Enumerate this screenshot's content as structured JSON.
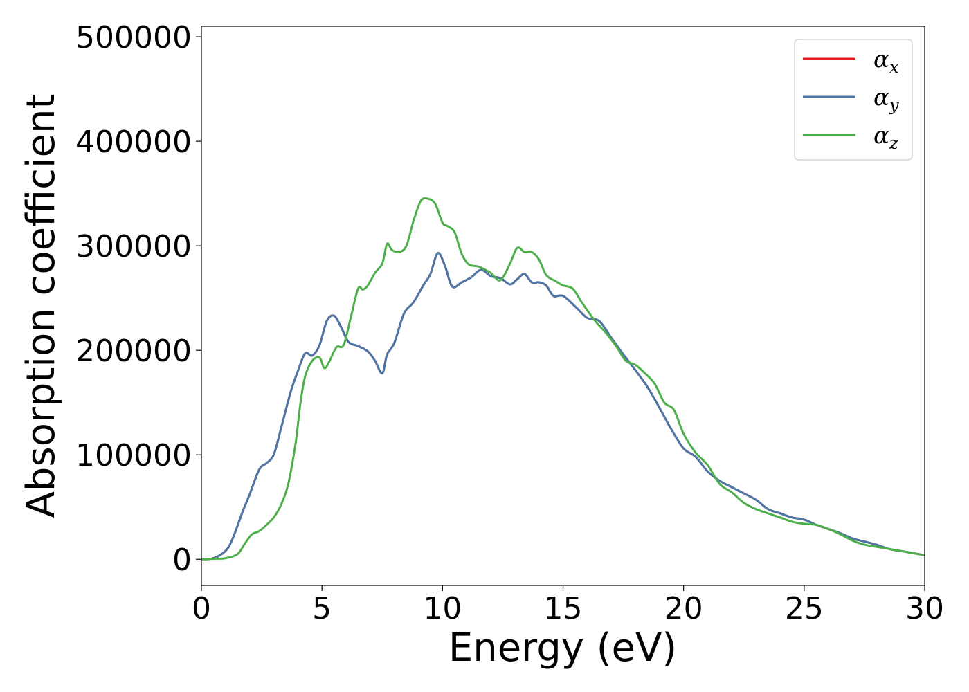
{
  "chart_data": {
    "type": "line",
    "xlabel": "Energy (eV)",
    "ylabel": "Absorption coefficient",
    "xlim": [
      0,
      30
    ],
    "ylim": [
      -25000,
      510000
    ],
    "xticks": [
      0,
      5,
      10,
      15,
      20,
      25,
      30
    ],
    "xtick_labels": [
      "0",
      "5",
      "10",
      "15",
      "20",
      "25",
      "30"
    ],
    "yticks": [
      0,
      100000,
      200000,
      300000,
      400000,
      500000
    ],
    "ytick_labels": [
      "0",
      "100000",
      "200000",
      "300000",
      "400000",
      "500000"
    ],
    "grid": false,
    "legend_position": "top-right",
    "series": [
      {
        "name": "α_x",
        "legend_symbol": "α",
        "legend_subscript": "x",
        "color": "#e41a1c",
        "x": [
          0,
          0.5,
          1.0,
          1.3,
          1.7,
          2.0,
          2.4,
          2.7,
          3.0,
          3.3,
          3.7,
          4.0,
          4.3,
          4.6,
          4.9,
          5.2,
          5.5,
          5.8,
          6.1,
          6.5,
          6.9,
          7.2,
          7.5,
          7.7,
          8.0,
          8.4,
          8.8,
          9.2,
          9.5,
          9.8,
          10.1,
          10.4,
          10.8,
          11.2,
          11.6,
          12.0,
          12.4,
          12.8,
          13.1,
          13.4,
          13.7,
          14.0,
          14.3,
          14.6,
          15.0,
          15.5,
          16.0,
          16.5,
          17.0,
          17.5,
          18.0,
          18.5,
          19.0,
          19.5,
          20.0,
          20.5,
          21.0,
          21.5,
          22.0,
          22.5,
          23.0,
          23.5,
          24.0,
          24.5,
          25.0,
          25.5,
          26.0,
          26.5,
          27.0,
          27.5,
          28.0,
          28.5,
          29.0,
          29.5,
          30.0
        ],
        "y": [
          0,
          1000,
          8000,
          20000,
          45000,
          62000,
          86000,
          92000,
          100000,
          125000,
          160000,
          180000,
          197000,
          195000,
          205000,
          228000,
          233000,
          222000,
          208000,
          204000,
          199000,
          190000,
          178000,
          196000,
          207000,
          235000,
          246000,
          262000,
          273000,
          293000,
          281000,
          261000,
          265000,
          270000,
          277000,
          271000,
          269000,
          263000,
          268000,
          273000,
          265000,
          265000,
          262000,
          252000,
          252000,
          242000,
          231000,
          228000,
          212000,
          196000,
          181000,
          165000,
          145000,
          124000,
          106000,
          98000,
          84000,
          75000,
          69000,
          63000,
          57000,
          48000,
          44000,
          40000,
          38000,
          33000,
          29000,
          25000,
          20000,
          17000,
          14000,
          10000,
          8000,
          6000,
          4000
        ]
      },
      {
        "name": "α_y",
        "legend_symbol": "α",
        "legend_subscript": "y",
        "color": "#4a77a8",
        "x": [
          0,
          0.5,
          1.0,
          1.3,
          1.7,
          2.0,
          2.4,
          2.7,
          3.0,
          3.3,
          3.7,
          4.0,
          4.3,
          4.6,
          4.9,
          5.2,
          5.5,
          5.8,
          6.1,
          6.5,
          6.9,
          7.2,
          7.5,
          7.7,
          8.0,
          8.4,
          8.8,
          9.2,
          9.5,
          9.8,
          10.1,
          10.4,
          10.8,
          11.2,
          11.6,
          12.0,
          12.4,
          12.8,
          13.1,
          13.4,
          13.7,
          14.0,
          14.3,
          14.6,
          15.0,
          15.5,
          16.0,
          16.5,
          17.0,
          17.5,
          18.0,
          18.5,
          19.0,
          19.5,
          20.0,
          20.5,
          21.0,
          21.5,
          22.0,
          22.5,
          23.0,
          23.5,
          24.0,
          24.5,
          25.0,
          25.5,
          26.0,
          26.5,
          27.0,
          27.5,
          28.0,
          28.5,
          29.0,
          29.5,
          30.0
        ],
        "y": [
          0,
          1000,
          8000,
          20000,
          45000,
          62000,
          86000,
          92000,
          100000,
          125000,
          160000,
          180000,
          197000,
          195000,
          205000,
          228000,
          233000,
          222000,
          208000,
          204000,
          199000,
          190000,
          178000,
          196000,
          207000,
          235000,
          246000,
          262000,
          273000,
          293000,
          281000,
          261000,
          265000,
          270000,
          277000,
          271000,
          269000,
          263000,
          268000,
          273000,
          265000,
          265000,
          262000,
          252000,
          252000,
          242000,
          231000,
          228000,
          212000,
          196000,
          181000,
          165000,
          145000,
          124000,
          106000,
          98000,
          84000,
          75000,
          69000,
          63000,
          57000,
          48000,
          44000,
          40000,
          38000,
          33000,
          29000,
          25000,
          20000,
          17000,
          14000,
          10000,
          8000,
          6000,
          4000
        ]
      },
      {
        "name": "α_z",
        "legend_symbol": "α",
        "legend_subscript": "z",
        "color": "#4daf4a",
        "x": [
          0,
          0.5,
          1.0,
          1.5,
          1.8,
          2.1,
          2.4,
          2.7,
          3.0,
          3.3,
          3.6,
          3.9,
          4.1,
          4.3,
          4.6,
          4.9,
          5.1,
          5.3,
          5.6,
          5.9,
          6.2,
          6.5,
          6.7,
          6.9,
          7.2,
          7.5,
          7.7,
          7.9,
          8.2,
          8.5,
          8.8,
          9.1,
          9.4,
          9.7,
          10.0,
          10.2,
          10.5,
          10.8,
          11.1,
          11.5,
          12.0,
          12.4,
          12.8,
          13.1,
          13.4,
          13.7,
          14.0,
          14.3,
          14.7,
          15.0,
          15.4,
          15.8,
          16.3,
          16.8,
          17.2,
          17.6,
          18.0,
          18.4,
          18.8,
          19.2,
          19.6,
          20.0,
          20.5,
          21.0,
          21.5,
          22.0,
          22.5,
          23.0,
          23.5,
          24.0,
          24.5,
          25.0,
          25.5,
          26.0,
          26.5,
          27.0,
          27.5,
          28.0,
          28.5,
          29.0,
          29.5,
          30.0
        ],
        "y": [
          0,
          500,
          1000,
          5000,
          15000,
          24000,
          27000,
          33000,
          40000,
          52000,
          72000,
          110000,
          148000,
          175000,
          190000,
          193000,
          183000,
          189000,
          203000,
          205000,
          232000,
          259000,
          258000,
          262000,
          274000,
          283000,
          302000,
          296000,
          294000,
          300000,
          324000,
          343000,
          345000,
          340000,
          322000,
          319000,
          313000,
          292000,
          282000,
          280000,
          274000,
          267000,
          283000,
          298000,
          294000,
          294000,
          287000,
          272000,
          266000,
          262000,
          259000,
          245000,
          229000,
          216000,
          204000,
          190000,
          186000,
          178000,
          168000,
          150000,
          143000,
          120000,
          102000,
          90000,
          72000,
          64000,
          54000,
          48000,
          44000,
          40000,
          36000,
          34000,
          33000,
          29000,
          24000,
          18000,
          14000,
          12000,
          10000,
          8000,
          6000,
          4000
        ]
      }
    ]
  }
}
